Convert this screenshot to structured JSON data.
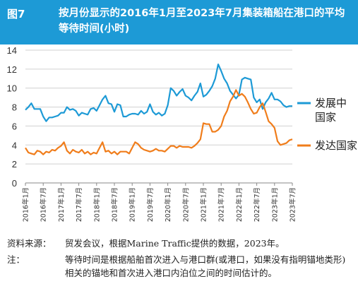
{
  "figure": {
    "label": "图7",
    "title": "按月份显示的2016年1月至2023年7月集装箱船在港口的平均等待时间(小时)"
  },
  "notes": {
    "source_label": "资料来源：",
    "source_text": "贸发会议，根据Marine Traffic提供的数据，2023年。",
    "note_label": "注：",
    "note_text": "等待时间是根据船舶首次进入与港口群(或港口，如果没有指明锚地类形)相关的锚地和首次进入港口内泊位之间的时间估计的。"
  },
  "colors": {
    "header_bg": "#1d9ad6",
    "developing": "#1d9ad6",
    "developed": "#f07d1b"
  },
  "chart_data": {
    "type": "line",
    "title": "按月份显示的2016年1月至2023年7月集装箱船在港口的平均等待时间(小时)",
    "ylim": [
      0,
      14
    ],
    "yticks": [
      0,
      2,
      4,
      6,
      8,
      10,
      12,
      14
    ],
    "grid": true,
    "legend_position": "right",
    "x_tick_labels": [
      "2016年1月",
      "2016年7月",
      "2017年1月",
      "2017年7月",
      "2018年1月",
      "2018年7月",
      "2019年1月",
      "2019年7月",
      "2020年1月",
      "2020年7月",
      "2021年1月",
      "2021年7月",
      "2022年1月",
      "2022年7月",
      "2023年1月",
      "2023年7月"
    ],
    "x": [
      "2016-01",
      "2016-02",
      "2016-03",
      "2016-04",
      "2016-05",
      "2016-06",
      "2016-07",
      "2016-08",
      "2016-09",
      "2016-10",
      "2016-11",
      "2016-12",
      "2017-01",
      "2017-02",
      "2017-03",
      "2017-04",
      "2017-05",
      "2017-06",
      "2017-07",
      "2017-08",
      "2017-09",
      "2017-10",
      "2017-11",
      "2017-12",
      "2018-01",
      "2018-02",
      "2018-03",
      "2018-04",
      "2018-05",
      "2018-06",
      "2018-07",
      "2018-08",
      "2018-09",
      "2018-10",
      "2018-11",
      "2018-12",
      "2019-01",
      "2019-02",
      "2019-03",
      "2019-04",
      "2019-05",
      "2019-06",
      "2019-07",
      "2019-08",
      "2019-09",
      "2019-10",
      "2019-11",
      "2019-12",
      "2020-01",
      "2020-02",
      "2020-03",
      "2020-04",
      "2020-05",
      "2020-06",
      "2020-07",
      "2020-08",
      "2020-09",
      "2020-10",
      "2020-11",
      "2020-12",
      "2021-01",
      "2021-02",
      "2021-03",
      "2021-04",
      "2021-05",
      "2021-06",
      "2021-07",
      "2021-08",
      "2021-09",
      "2021-10",
      "2021-11",
      "2021-12",
      "2022-01",
      "2022-02",
      "2022-03",
      "2022-04",
      "2022-05",
      "2022-06",
      "2022-07",
      "2022-08",
      "2022-09",
      "2022-10",
      "2022-11",
      "2022-12",
      "2023-01",
      "2023-02",
      "2023-03",
      "2023-04",
      "2023-05",
      "2023-06",
      "2023-07"
    ],
    "series": [
      {
        "name": "发展中国家",
        "values": [
          7.7,
          8.0,
          8.4,
          7.8,
          7.8,
          7.8,
          7.0,
          6.5,
          6.9,
          6.9,
          7.0,
          7.1,
          7.4,
          7.4,
          8.0,
          7.7,
          7.8,
          7.6,
          7.1,
          7.4,
          7.3,
          7.2,
          7.8,
          7.9,
          7.6,
          8.2,
          8.8,
          9.2,
          8.4,
          8.3,
          7.5,
          8.3,
          8.2,
          7.0,
          7.0,
          7.2,
          7.3,
          7.3,
          7.2,
          7.6,
          7.3,
          7.5,
          8.3,
          7.5,
          7.2,
          7.4,
          7.1,
          7.3,
          8.2,
          10.0,
          9.7,
          9.2,
          9.6,
          9.9,
          9.2,
          9.0,
          8.7,
          9.2,
          9.6,
          10.5,
          9.1,
          9.3,
          9.7,
          10.2,
          11.0,
          12.5,
          11.8,
          11.0,
          10.5,
          9.7,
          9.3,
          8.9,
          9.3,
          10.9,
          11.1,
          11.0,
          10.9,
          9.0,
          8.5,
          8.8,
          7.8,
          8.5,
          8.9,
          9.5,
          8.8,
          8.8,
          8.6,
          8.2,
          8.0,
          8.1,
          8.1
        ]
      },
      {
        "name": "发达国家",
        "values": [
          3.7,
          3.2,
          3.1,
          3.0,
          3.4,
          3.3,
          3.0,
          3.3,
          3.2,
          3.5,
          3.4,
          3.7,
          3.9,
          4.3,
          3.4,
          3.1,
          3.5,
          3.3,
          3.2,
          3.5,
          3.1,
          3.3,
          3.0,
          3.2,
          3.1,
          3.7,
          4.3,
          3.3,
          3.4,
          3.1,
          3.3,
          3.0,
          3.3,
          3.3,
          3.3,
          3.1,
          3.7,
          4.3,
          4.1,
          3.7,
          3.5,
          3.4,
          3.3,
          3.4,
          3.6,
          3.4,
          3.4,
          3.3,
          3.6,
          3.9,
          3.9,
          3.7,
          3.9,
          3.8,
          3.8,
          3.8,
          3.7,
          3.9,
          4.2,
          4.6,
          6.3,
          6.2,
          6.2,
          5.4,
          5.4,
          5.6,
          6.0,
          7.0,
          7.6,
          8.6,
          9.1,
          9.8,
          9.2,
          9.4,
          9.1,
          8.5,
          7.8,
          7.3,
          7.4,
          8.0,
          8.4,
          7.5,
          6.5,
          6.2,
          5.8,
          4.4,
          4.0,
          4.1,
          4.2,
          4.5,
          4.6
        ]
      }
    ]
  }
}
